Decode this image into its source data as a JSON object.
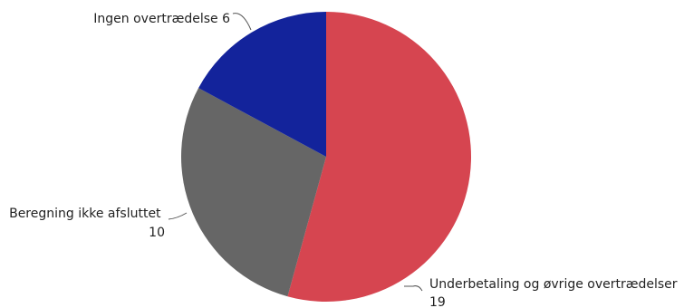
{
  "chart_data": {
    "type": "pie",
    "title": "",
    "start_angle_deg": 0,
    "direction": "clockwise",
    "slices": [
      {
        "label": "Underbetaling og øvrige overtrædelser",
        "value": 19,
        "color": "#D64550"
      },
      {
        "label": "Beregning ikke afsluttet",
        "value": 10,
        "color": "#666666"
      },
      {
        "label": "Ingen overtrædelse",
        "value": 6,
        "color": "#13239B"
      }
    ],
    "data_labels": [
      {
        "name": "Underbetaling og øvrige overtrædelser",
        "value": "19"
      },
      {
        "name": "Beregning ikke afsluttet",
        "value": "10"
      },
      {
        "name": "Ingen overtrædelse",
        "value": "6"
      }
    ],
    "legend": "none"
  }
}
